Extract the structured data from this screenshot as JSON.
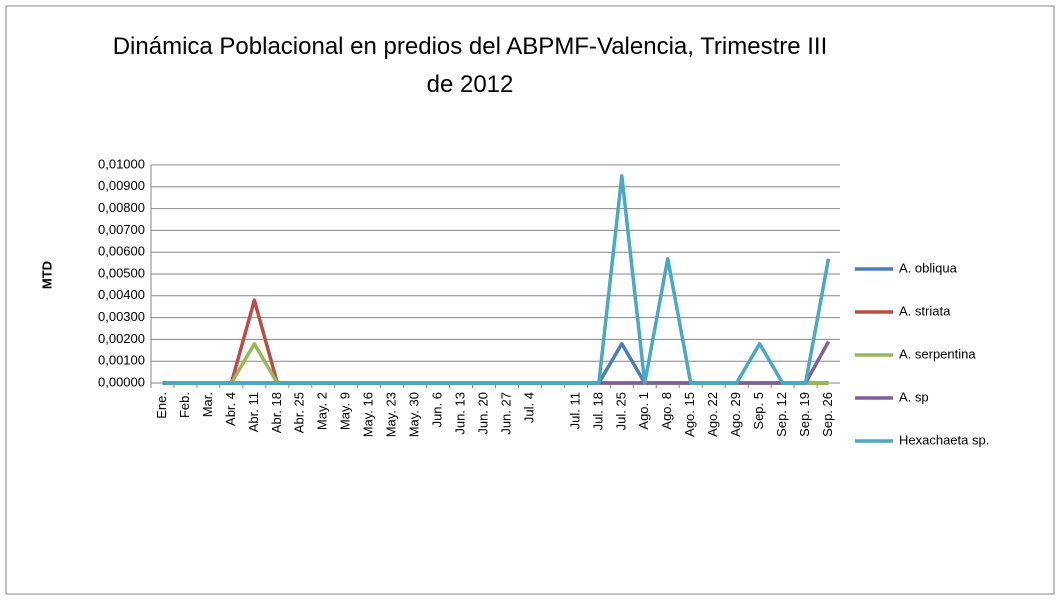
{
  "chart_data": {
    "type": "line",
    "title": "Dinámica Poblacional  en predios del ABPMF-Valencia, Trimestre III de 2012",
    "ylabel": "MTD",
    "categories": [
      "Ene.",
      "Feb.",
      "Mar.",
      "Abr. 4",
      "Abr. 11",
      "Abr. 18",
      "Abr. 25",
      "May. 2",
      "May. 9",
      "May. 16",
      "May. 23",
      "May. 30",
      "Jun. 6",
      "Jun. 13",
      "Jun. 20",
      "Jun. 27",
      "Jul. 4",
      null,
      "Jul. 11",
      "Jul. 18",
      "Jul. 25",
      "Ago. 1",
      "Ago. 8",
      "Ago. 15",
      "Ago. 22",
      "Ago. 29",
      "Sep. 5",
      "Sep. 12",
      "Sep. 19",
      "Sep. 26"
    ],
    "series": [
      {
        "name": "A. obliqua",
        "color": "#4a7ebb",
        "values": [
          0,
          0,
          0,
          0,
          0,
          0,
          0,
          0,
          0,
          0,
          0,
          0,
          0,
          0,
          0,
          0,
          0,
          0,
          0,
          0,
          0.0018,
          0,
          0,
          0,
          0,
          0,
          0,
          0,
          0,
          0
        ]
      },
      {
        "name": "A. striata",
        "color": "#be4b48",
        "values": [
          0,
          0,
          0,
          0,
          0.0038,
          0,
          0,
          0,
          0,
          0,
          0,
          0,
          0,
          0,
          0,
          0,
          0,
          0,
          0,
          0,
          0,
          0,
          0,
          0,
          0,
          0,
          0,
          0,
          0,
          0
        ]
      },
      {
        "name": "A. serpentina",
        "color": "#98b954",
        "values": [
          0,
          0,
          0,
          0,
          0.0018,
          0,
          0,
          0,
          0,
          0,
          0,
          0,
          0,
          0,
          0,
          0,
          0,
          0,
          0,
          0,
          0,
          0,
          0,
          0,
          0,
          0,
          0,
          0,
          0,
          0
        ]
      },
      {
        "name": "A. sp",
        "color": "#7d60a0",
        "values": [
          0,
          0,
          0,
          0,
          0,
          0,
          0,
          0,
          0,
          0,
          0,
          0,
          0,
          0,
          0,
          0,
          0,
          0,
          0,
          0,
          0,
          0,
          0,
          0,
          0,
          0,
          0,
          0,
          0,
          0.0019
        ]
      },
      {
        "name": "Hexachaeta sp.",
        "color": "#46aac5",
        "values": [
          0,
          0,
          0,
          0,
          0,
          0,
          0,
          0,
          0,
          0,
          0,
          0,
          0,
          0,
          0,
          0,
          0,
          0,
          0,
          0,
          0.0095,
          0,
          0.0057,
          0,
          0,
          0,
          0.0018,
          0,
          0,
          0.0057
        ]
      }
    ],
    "ylim": [
      0,
      0.01
    ],
    "yticks": [
      {
        "value": 0,
        "label": "0,00000"
      },
      {
        "value": 0.001,
        "label": "0,00100"
      },
      {
        "value": 0.002,
        "label": "0,00200"
      },
      {
        "value": 0.003,
        "label": "0,00300"
      },
      {
        "value": 0.004,
        "label": "0,00400"
      },
      {
        "value": 0.005,
        "label": "0,00500"
      },
      {
        "value": 0.006,
        "label": "0,00600"
      },
      {
        "value": 0.007,
        "label": "0,00700"
      },
      {
        "value": 0.008,
        "label": "0,00800"
      },
      {
        "value": 0.009,
        "label": "0,00900"
      },
      {
        "value": 0.01,
        "label": "0,01000"
      }
    ],
    "grid": true,
    "legend": "right"
  }
}
